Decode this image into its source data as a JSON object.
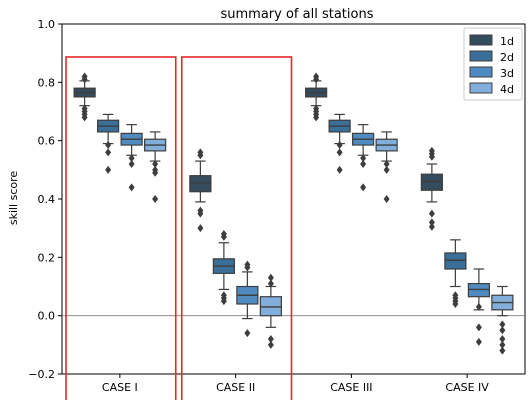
{
  "chart_data": {
    "type": "box",
    "title": "summary of all stations",
    "ylabel": "skill score",
    "xlabel": "",
    "ylim": [
      -0.2,
      1.0
    ],
    "yticks": [
      "−0.2",
      "0.0",
      "0.2",
      "0.4",
      "0.6",
      "0.8",
      "1.0"
    ],
    "ytick_values": [
      -0.2,
      0.0,
      0.2,
      0.4,
      0.6,
      0.8,
      1.0
    ],
    "categories": [
      "CASE I",
      "CASE II",
      "CASE III",
      "CASE IV"
    ],
    "reference_line_y": 0.0,
    "highlighted_categories": [
      "CASE I",
      "CASE II"
    ],
    "highlight_color": "#e8262b",
    "legend": {
      "position": "top-right",
      "entries": [
        "1d",
        "2d",
        "3d",
        "4d"
      ]
    },
    "series": [
      {
        "name": "1d",
        "color": "#354b5e",
        "boxes": [
          {
            "whislo": 0.72,
            "q1": 0.75,
            "med": 0.765,
            "q3": 0.78,
            "whishi": 0.805,
            "fliers": [
              0.82,
              0.81,
              0.71,
              0.7,
              0.69,
              0.68
            ]
          },
          {
            "whislo": 0.39,
            "q1": 0.425,
            "med": 0.455,
            "q3": 0.48,
            "whishi": 0.53,
            "fliers": [
              0.56,
              0.55,
              0.36,
              0.35,
              0.3
            ]
          },
          {
            "whislo": 0.72,
            "q1": 0.75,
            "med": 0.765,
            "q3": 0.78,
            "whishi": 0.805,
            "fliers": [
              0.82,
              0.81,
              0.71,
              0.7,
              0.69,
              0.68
            ]
          },
          {
            "whislo": 0.39,
            "q1": 0.43,
            "med": 0.46,
            "q3": 0.485,
            "whishi": 0.52,
            "fliers": [
              0.565,
              0.555,
              0.545,
              0.35,
              0.32,
              0.305
            ]
          }
        ]
      },
      {
        "name": "2d",
        "color": "#3a6f98",
        "boxes": [
          {
            "whislo": 0.59,
            "q1": 0.63,
            "med": 0.65,
            "q3": 0.67,
            "whishi": 0.69,
            "fliers": [
              0.585,
              0.56,
              0.5
            ]
          },
          {
            "whislo": 0.09,
            "q1": 0.145,
            "med": 0.17,
            "q3": 0.195,
            "whishi": 0.25,
            "fliers": [
              0.28,
              0.27,
              0.07,
              0.06,
              0.05
            ]
          },
          {
            "whislo": 0.59,
            "q1": 0.63,
            "med": 0.65,
            "q3": 0.67,
            "whishi": 0.69,
            "fliers": [
              0.585,
              0.56,
              0.5
            ]
          },
          {
            "whislo": 0.1,
            "q1": 0.16,
            "med": 0.19,
            "q3": 0.215,
            "whishi": 0.26,
            "fliers": [
              0.07,
              0.06,
              0.05,
              0.04
            ]
          }
        ]
      },
      {
        "name": "3d",
        "color": "#4f8bc0",
        "boxes": [
          {
            "whislo": 0.55,
            "q1": 0.585,
            "med": 0.605,
            "q3": 0.625,
            "whishi": 0.655,
            "fliers": [
              0.54,
              0.52,
              0.44
            ]
          },
          {
            "whislo": -0.01,
            "q1": 0.04,
            "med": 0.07,
            "q3": 0.1,
            "whishi": 0.15,
            "fliers": [
              0.175,
              0.165,
              -0.06
            ]
          },
          {
            "whislo": 0.55,
            "q1": 0.585,
            "med": 0.605,
            "q3": 0.625,
            "whishi": 0.655,
            "fliers": [
              0.54,
              0.52,
              0.44
            ]
          },
          {
            "whislo": 0.02,
            "q1": 0.065,
            "med": 0.09,
            "q3": 0.11,
            "whishi": 0.16,
            "fliers": [
              -0.04,
              -0.09,
              0.03
            ]
          }
        ]
      },
      {
        "name": "4d",
        "color": "#82aedb",
        "boxes": [
          {
            "whislo": 0.53,
            "q1": 0.565,
            "med": 0.585,
            "q3": 0.605,
            "whishi": 0.63,
            "fliers": [
              0.52,
              0.5,
              0.49,
              0.4
            ]
          },
          {
            "whislo": -0.04,
            "q1": 0.0,
            "med": 0.03,
            "q3": 0.065,
            "whishi": 0.1,
            "fliers": [
              0.13,
              0.11,
              -0.08,
              -0.1
            ]
          },
          {
            "whislo": 0.53,
            "q1": 0.565,
            "med": 0.585,
            "q3": 0.605,
            "whishi": 0.63,
            "fliers": [
              0.52,
              0.5,
              0.4
            ]
          },
          {
            "whislo": 0.0,
            "q1": 0.02,
            "med": 0.045,
            "q3": 0.07,
            "whishi": 0.1,
            "fliers": [
              -0.03,
              -0.05,
              -0.08,
              -0.1,
              -0.12
            ]
          }
        ]
      }
    ]
  }
}
